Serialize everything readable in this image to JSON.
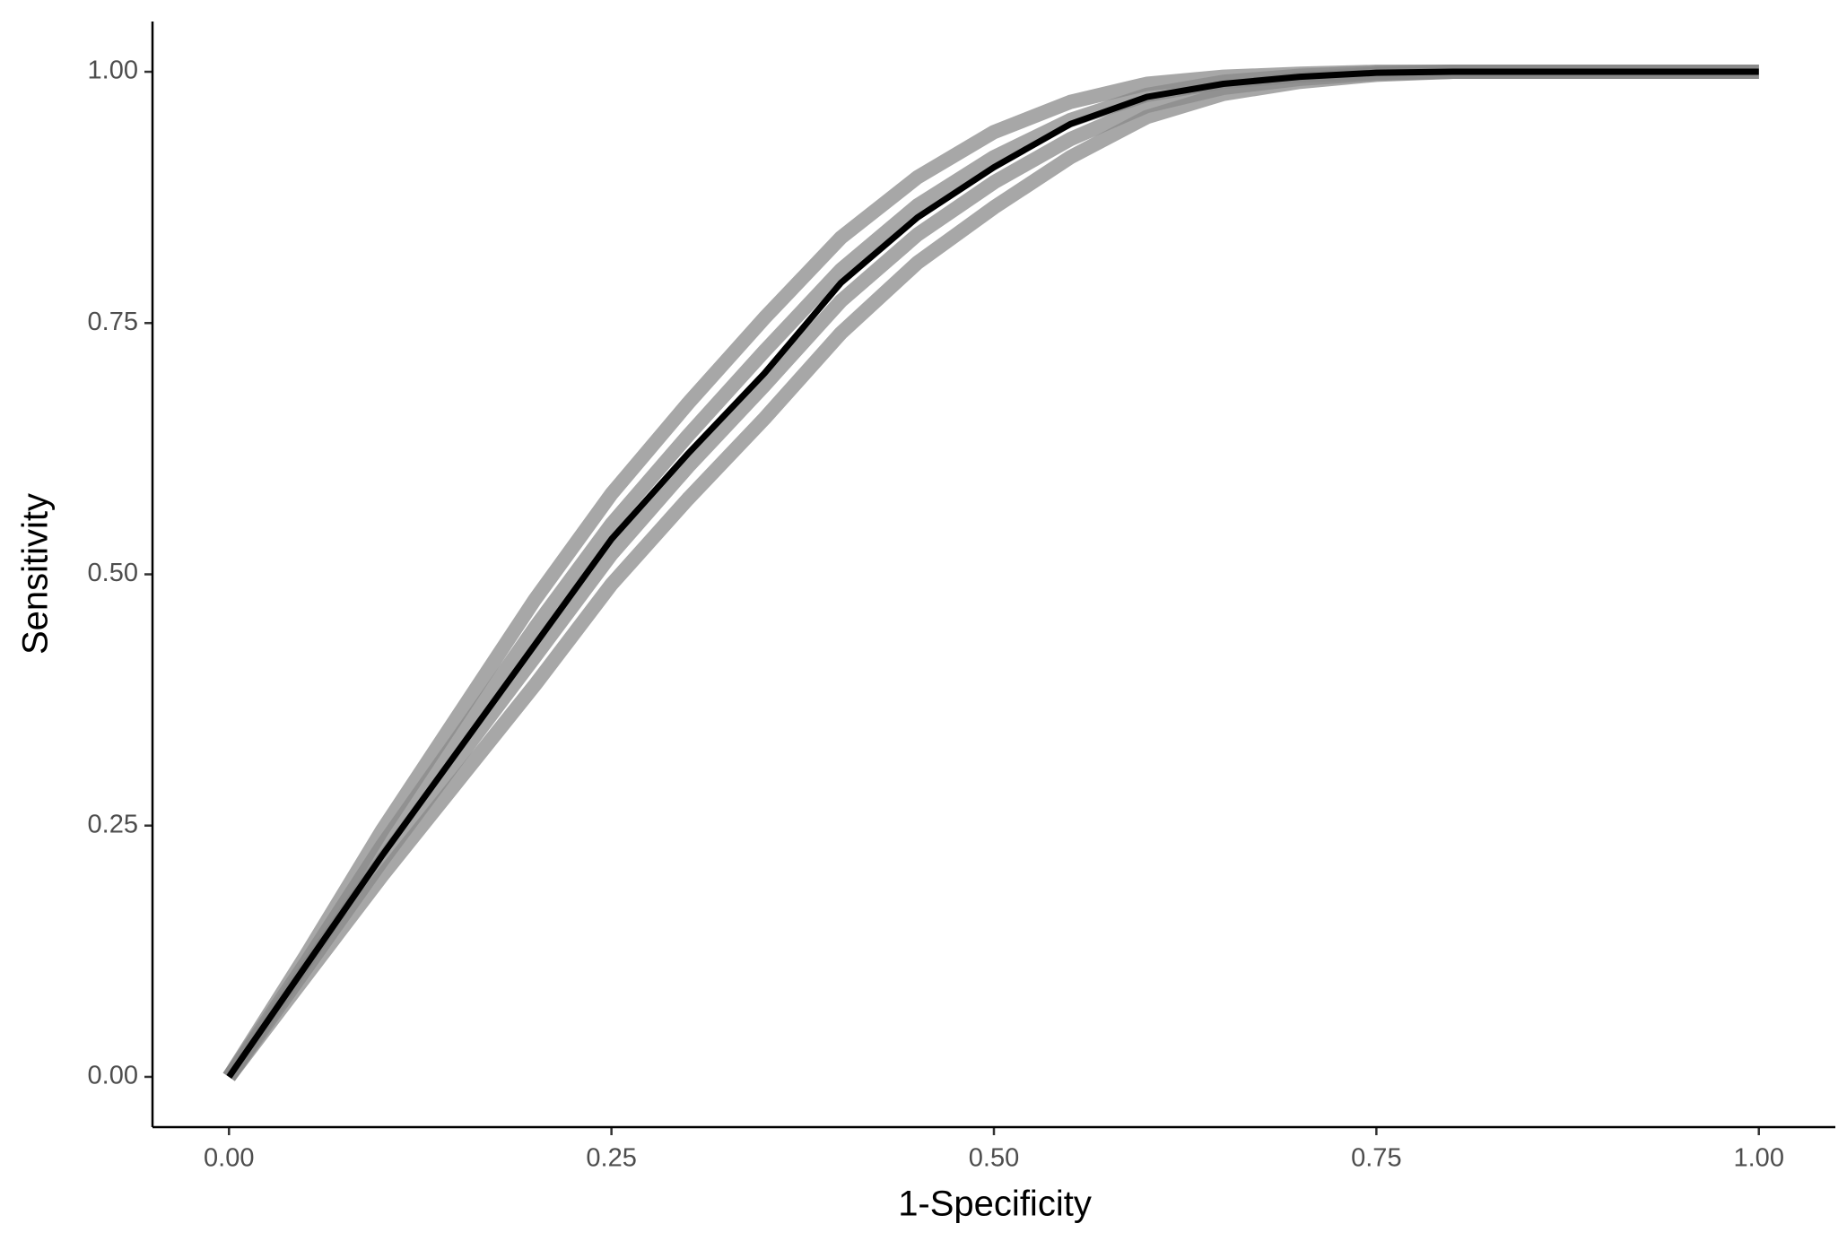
{
  "chart_data": {
    "type": "line",
    "x_label": "1-Specificity",
    "y_label": "Sensitivity",
    "x": [
      0,
      0.05,
      0.1,
      0.15,
      0.2,
      0.25,
      0.3,
      0.35,
      0.4,
      0.45,
      0.5,
      0.55,
      0.6,
      0.65,
      0.7,
      0.75,
      0.8,
      0.9,
      1.0
    ],
    "series": [
      {
        "color": "#8a8a8a",
        "values": [
          0,
          0.1,
          0.2,
          0.295,
          0.39,
          0.49,
          0.575,
          0.655,
          0.74,
          0.81,
          0.865,
          0.915,
          0.955,
          0.978,
          0.99,
          0.997,
          1,
          1,
          1
        ]
      },
      {
        "color": "#8a8a8a",
        "values": [
          0,
          0.107,
          0.215,
          0.317,
          0.418,
          0.52,
          0.607,
          0.688,
          0.772,
          0.838,
          0.89,
          0.933,
          0.966,
          0.984,
          0.993,
          0.998,
          1,
          1,
          1
        ]
      },
      {
        "color": "#8a8a8a",
        "values": [
          0,
          0.113,
          0.23,
          0.338,
          0.447,
          0.55,
          0.638,
          0.722,
          0.803,
          0.867,
          0.915,
          0.952,
          0.977,
          0.99,
          0.996,
          0.999,
          1,
          1,
          1
        ]
      },
      {
        "color": "#8a8a8a",
        "values": [
          0,
          0.12,
          0.245,
          0.36,
          0.475,
          0.58,
          0.67,
          0.755,
          0.835,
          0.895,
          0.94,
          0.97,
          0.988,
          0.995,
          0.998,
          1,
          1,
          1,
          1
        ]
      },
      {
        "color": "#000000",
        "values": [
          0,
          0.11,
          0.22,
          0.325,
          0.43,
          0.535,
          0.62,
          0.7,
          0.79,
          0.855,
          0.905,
          0.948,
          0.975,
          0.988,
          0.995,
          0.999,
          1,
          1,
          1
        ]
      }
    ],
    "xlim": [
      -0.05,
      1.05
    ],
    "ylim": [
      -0.05,
      1.05
    ],
    "xticks": [
      {
        "value": 0,
        "label": "0.00"
      },
      0.25,
      {
        "value": 0.5,
        "label": "0.50"
      },
      0.75,
      {
        "value": 1,
        "label": "1.00"
      }
    ],
    "yticks": [
      {
        "value": 0,
        "label": "0.00"
      },
      0.25,
      {
        "value": 0.5,
        "label": "0.50"
      },
      0.75,
      {
        "value": 1,
        "label": "1.00"
      }
    ],
    "grid": false
  }
}
